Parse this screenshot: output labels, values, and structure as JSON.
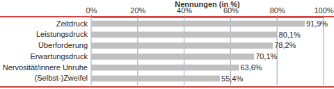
{
  "chart_data": {
    "type": "bar",
    "title": "Nennungen (in %)",
    "orientation": "horizontal",
    "categories": [
      "Zeitdruck",
      "Leistungsdruck",
      "Überforderung",
      "Erwartungsdruck",
      "Nervosität/innere Unruhe",
      "(Selbst-)Zweifel"
    ],
    "values": [
      91.9,
      80.1,
      78.2,
      70.1,
      63.6,
      55.4
    ],
    "value_labels": [
      "91,9%",
      "80,1%",
      "78,2%",
      "70,1%",
      "63,6%",
      "55,4%"
    ],
    "data_labels": true,
    "color": "#c0c0c0",
    "xlim": [
      0,
      100
    ],
    "xticks": [
      {
        "value": 0,
        "label": "0%"
      },
      {
        "value": 20,
        "label": "20%"
      },
      {
        "value": 40,
        "label": "40%"
      },
      {
        "value": 60,
        "label": "60%"
      },
      {
        "value": 80,
        "label": "80%"
      },
      {
        "value": 100,
        "label": "100%"
      }
    ],
    "grid": true
  }
}
